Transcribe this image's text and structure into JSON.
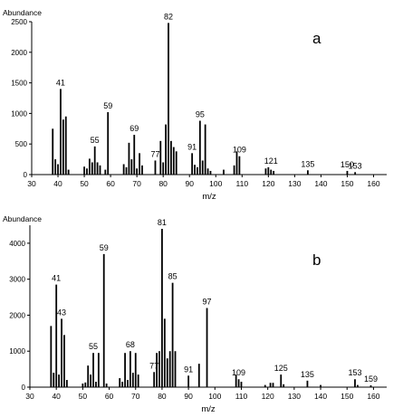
{
  "chart_data": [
    {
      "id": "a",
      "type": "bar",
      "panel_label": "a",
      "ylabel": "Abundance",
      "xlabel": "m/z",
      "xlim": [
        30,
        165
      ],
      "ylim": [
        0,
        2500
      ],
      "xticks": [
        30,
        40,
        50,
        60,
        70,
        80,
        90,
        100,
        110,
        120,
        130,
        140,
        150,
        160
      ],
      "yticks": [
        0,
        500,
        1000,
        1500,
        2000,
        2500
      ],
      "peaks": [
        {
          "x": 38,
          "y": 750
        },
        {
          "x": 39,
          "y": 250
        },
        {
          "x": 40,
          "y": 170
        },
        {
          "x": 41,
          "y": 1400
        },
        {
          "x": 42,
          "y": 900
        },
        {
          "x": 43,
          "y": 950
        },
        {
          "x": 44,
          "y": 80
        },
        {
          "x": 50,
          "y": 130
        },
        {
          "x": 51,
          "y": 100
        },
        {
          "x": 52,
          "y": 260
        },
        {
          "x": 53,
          "y": 200
        },
        {
          "x": 54,
          "y": 460
        },
        {
          "x": 55,
          "y": 200
        },
        {
          "x": 56,
          "y": 150
        },
        {
          "x": 58,
          "y": 80
        },
        {
          "x": 59,
          "y": 1020
        },
        {
          "x": 65,
          "y": 170
        },
        {
          "x": 66,
          "y": 120
        },
        {
          "x": 67,
          "y": 520
        },
        {
          "x": 68,
          "y": 250
        },
        {
          "x": 69,
          "y": 650
        },
        {
          "x": 70,
          "y": 100
        },
        {
          "x": 71,
          "y": 350
        },
        {
          "x": 72,
          "y": 150
        },
        {
          "x": 77,
          "y": 230
        },
        {
          "x": 79,
          "y": 550
        },
        {
          "x": 80,
          "y": 200
        },
        {
          "x": 81,
          "y": 820
        },
        {
          "x": 82,
          "y": 2480
        },
        {
          "x": 83,
          "y": 550
        },
        {
          "x": 84,
          "y": 450
        },
        {
          "x": 85,
          "y": 380
        },
        {
          "x": 91,
          "y": 350
        },
        {
          "x": 92,
          "y": 160
        },
        {
          "x": 93,
          "y": 120
        },
        {
          "x": 94,
          "y": 880
        },
        {
          "x": 95,
          "y": 230
        },
        {
          "x": 96,
          "y": 820
        },
        {
          "x": 97,
          "y": 100
        },
        {
          "x": 98,
          "y": 60
        },
        {
          "x": 103,
          "y": 80
        },
        {
          "x": 107,
          "y": 150
        },
        {
          "x": 108,
          "y": 380
        },
        {
          "x": 109,
          "y": 300
        },
        {
          "x": 119,
          "y": 100
        },
        {
          "x": 120,
          "y": 120
        },
        {
          "x": 121,
          "y": 80
        },
        {
          "x": 122,
          "y": 60
        },
        {
          "x": 135,
          "y": 70
        },
        {
          "x": 150,
          "y": 60
        },
        {
          "x": 153,
          "y": 40
        }
      ],
      "annotations": [
        {
          "label": "41",
          "x": 41,
          "y": 1400
        },
        {
          "label": "55",
          "x": 54,
          "y": 460
        },
        {
          "label": "59",
          "x": 59,
          "y": 1020
        },
        {
          "label": "69",
          "x": 69,
          "y": 650
        },
        {
          "label": "77",
          "x": 77,
          "y": 230
        },
        {
          "label": "82",
          "x": 82,
          "y": 2480
        },
        {
          "label": "91",
          "x": 91,
          "y": 350
        },
        {
          "label": "95",
          "x": 94,
          "y": 880
        },
        {
          "label": "109",
          "x": 109,
          "y": 300
        },
        {
          "label": "121",
          "x": 121,
          "y": 120
        },
        {
          "label": "135",
          "x": 135,
          "y": 70
        },
        {
          "label": "150",
          "x": 150,
          "y": 60
        },
        {
          "label": "153",
          "x": 153,
          "y": 40
        }
      ]
    },
    {
      "id": "b",
      "type": "bar",
      "panel_label": "b",
      "ylabel": "Abundance",
      "xlabel": "m/z",
      "xlim": [
        30,
        165
      ],
      "ylim": [
        0,
        4500
      ],
      "xticks": [
        30,
        40,
        50,
        60,
        70,
        80,
        90,
        100,
        110,
        120,
        130,
        140,
        150,
        160
      ],
      "yticks": [
        0,
        1000,
        2000,
        3000,
        4000
      ],
      "peaks": [
        {
          "x": 38,
          "y": 1700
        },
        {
          "x": 39,
          "y": 400
        },
        {
          "x": 40,
          "y": 2850
        },
        {
          "x": 41,
          "y": 350
        },
        {
          "x": 42,
          "y": 1900
        },
        {
          "x": 43,
          "y": 1450
        },
        {
          "x": 44,
          "y": 200
        },
        {
          "x": 50,
          "y": 100
        },
        {
          "x": 51,
          "y": 130
        },
        {
          "x": 52,
          "y": 600
        },
        {
          "x": 53,
          "y": 350
        },
        {
          "x": 54,
          "y": 950
        },
        {
          "x": 55,
          "y": 150
        },
        {
          "x": 56,
          "y": 950
        },
        {
          "x": 58,
          "y": 3700
        },
        {
          "x": 59,
          "y": 100
        },
        {
          "x": 64,
          "y": 250
        },
        {
          "x": 65,
          "y": 150
        },
        {
          "x": 66,
          "y": 950
        },
        {
          "x": 67,
          "y": 200
        },
        {
          "x": 68,
          "y": 1000
        },
        {
          "x": 69,
          "y": 400
        },
        {
          "x": 70,
          "y": 950
        },
        {
          "x": 71,
          "y": 350
        },
        {
          "x": 77,
          "y": 420
        },
        {
          "x": 78,
          "y": 950
        },
        {
          "x": 79,
          "y": 1000
        },
        {
          "x": 80,
          "y": 4400
        },
        {
          "x": 81,
          "y": 1900
        },
        {
          "x": 82,
          "y": 800
        },
        {
          "x": 83,
          "y": 1000
        },
        {
          "x": 84,
          "y": 2900
        },
        {
          "x": 85,
          "y": 1000
        },
        {
          "x": 90,
          "y": 320
        },
        {
          "x": 94,
          "y": 650
        },
        {
          "x": 97,
          "y": 2200
        },
        {
          "x": 108,
          "y": 350
        },
        {
          "x": 109,
          "y": 220
        },
        {
          "x": 110,
          "y": 150
        },
        {
          "x": 119,
          "y": 60
        },
        {
          "x": 121,
          "y": 120
        },
        {
          "x": 122,
          "y": 120
        },
        {
          "x": 125,
          "y": 350
        },
        {
          "x": 126,
          "y": 80
        },
        {
          "x": 135,
          "y": 180
        },
        {
          "x": 140,
          "y": 60
        },
        {
          "x": 153,
          "y": 220
        },
        {
          "x": 154,
          "y": 60
        },
        {
          "x": 159,
          "y": 50
        }
      ],
      "annotations": [
        {
          "label": "41",
          "x": 40,
          "y": 2850
        },
        {
          "label": "43",
          "x": 42,
          "y": 1900
        },
        {
          "label": "55",
          "x": 54,
          "y": 950
        },
        {
          "label": "59",
          "x": 58,
          "y": 3700
        },
        {
          "label": "68",
          "x": 68,
          "y": 1000
        },
        {
          "label": "77",
          "x": 77,
          "y": 420
        },
        {
          "label": "81",
          "x": 80,
          "y": 4400
        },
        {
          "label": "85",
          "x": 84,
          "y": 2900
        },
        {
          "label": "91",
          "x": 90,
          "y": 320
        },
        {
          "label": "97",
          "x": 97,
          "y": 2200
        },
        {
          "label": "109",
          "x": 109,
          "y": 220
        },
        {
          "label": "125",
          "x": 125,
          "y": 350
        },
        {
          "label": "135",
          "x": 135,
          "y": 180
        },
        {
          "label": "153",
          "x": 153,
          "y": 220
        },
        {
          "label": "159",
          "x": 159,
          "y": 50
        }
      ]
    }
  ]
}
